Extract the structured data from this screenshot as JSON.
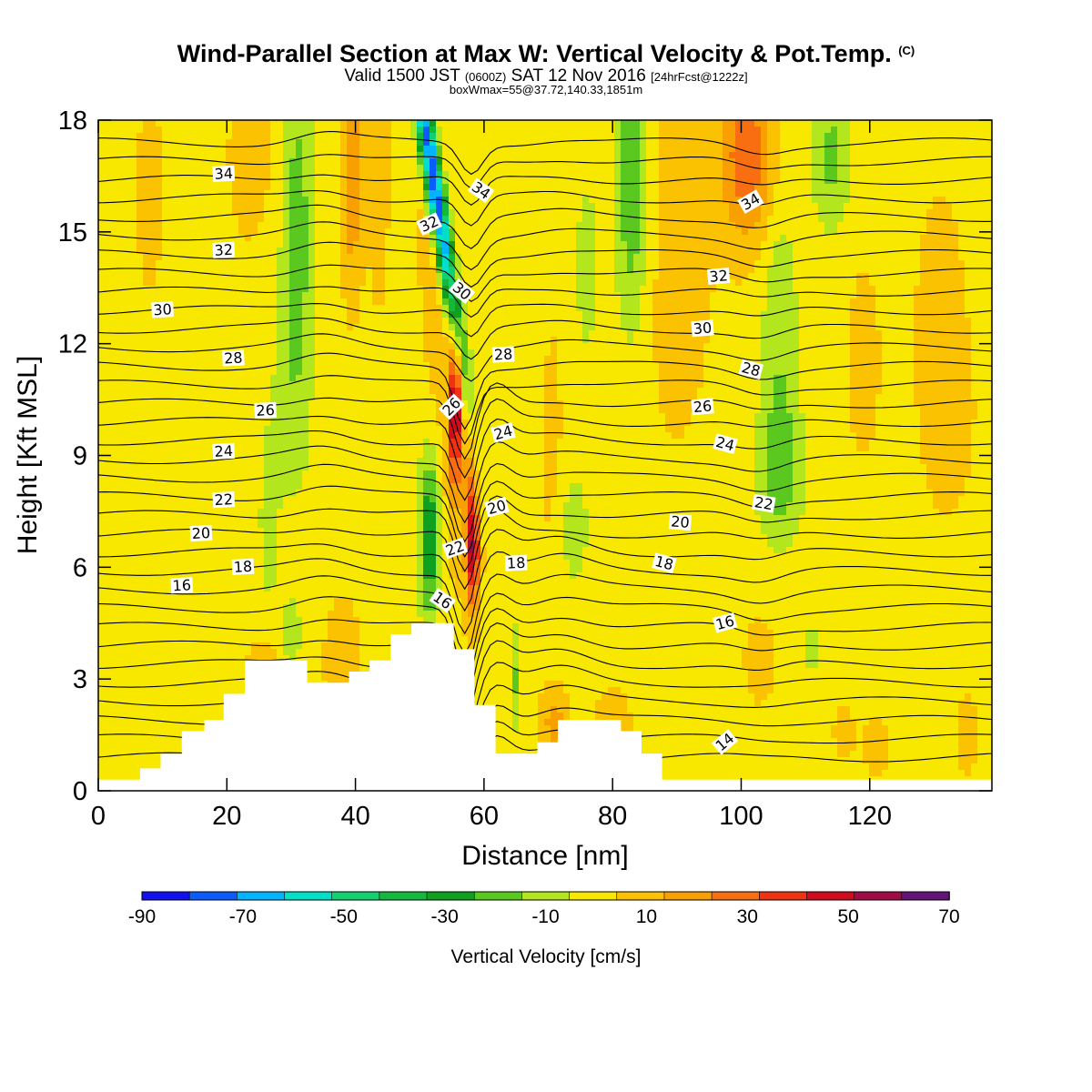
{
  "title": {
    "main": "Wind-Parallel Section at Max W: Vertical Velocity & Pot.Temp.",
    "copyright": "(C)",
    "valid_a": "Valid 1500 JST",
    "valid_utc": "(0600Z)",
    "valid_b": "SAT 12 Nov 2016",
    "fcst": "[24hrFcst@1222z]",
    "box": "boxWmax=55@37.72,140.33,1851m"
  },
  "chart_data": {
    "type": "heatmap",
    "xlabel": "Distance [nm]",
    "ylabel": "Height [Kft MSL]",
    "xlim": [
      0,
      139
    ],
    "ylim": [
      0,
      18
    ],
    "x_ticks": [
      0,
      20,
      40,
      60,
      80,
      100,
      120
    ],
    "y_ticks": [
      0,
      3,
      6,
      9,
      12,
      15,
      18
    ],
    "colorbar": {
      "label": "Vertical Velocity [cm/s]",
      "tick_labels": [
        "-90",
        "-70",
        "-50",
        "-30",
        "-10",
        "10",
        "30",
        "50",
        "70"
      ],
      "levels": [
        -90,
        -80,
        -70,
        -60,
        -50,
        -40,
        -30,
        -20,
        -10,
        0,
        10,
        20,
        30,
        40,
        50,
        60,
        70
      ],
      "colors": [
        "#1010f0",
        "#0a5cff",
        "#00b4ff",
        "#00e0c8",
        "#10d070",
        "#14b83c",
        "#10a020",
        "#5ac81e",
        "#b4e61e",
        "#f8e800",
        "#fac200",
        "#f8a000",
        "#f86e10",
        "#f03210",
        "#d20a1e",
        "#a00a46",
        "#641478"
      ]
    },
    "terrain_kft": [
      [
        0,
        0.3
      ],
      [
        6.5,
        0.3
      ],
      [
        6.5,
        0.6
      ],
      [
        9.7,
        0.6
      ],
      [
        9.7,
        1
      ],
      [
        13,
        1
      ],
      [
        13,
        1.6
      ],
      [
        16.5,
        1.6
      ],
      [
        16.5,
        1.9
      ],
      [
        19.5,
        1.9
      ],
      [
        19.5,
        2.6
      ],
      [
        22.8,
        2.6
      ],
      [
        22.8,
        3.5
      ],
      [
        32.5,
        3.5
      ],
      [
        32.5,
        2.9
      ],
      [
        39,
        2.9
      ],
      [
        39,
        3.2
      ],
      [
        42.2,
        3.2
      ],
      [
        42.2,
        3.5
      ],
      [
        45.5,
        3.5
      ],
      [
        45.5,
        4.2
      ],
      [
        48.7,
        4.2
      ],
      [
        48.7,
        4.5
      ],
      [
        55.3,
        4.5
      ],
      [
        55.3,
        3.8
      ],
      [
        58.5,
        3.8
      ],
      [
        58.5,
        2.3
      ],
      [
        61.8,
        2.3
      ],
      [
        61.8,
        1
      ],
      [
        68.3,
        1
      ],
      [
        68.3,
        1.3
      ],
      [
        71.5,
        1.3
      ],
      [
        71.5,
        1.9
      ],
      [
        81.3,
        1.9
      ],
      [
        81.3,
        1.6
      ],
      [
        84.5,
        1.6
      ],
      [
        84.5,
        1
      ],
      [
        87.7,
        1
      ],
      [
        87.7,
        0.3
      ],
      [
        139,
        0.3
      ]
    ],
    "theta_labels": [
      {
        "text": "34",
        "x": 19.5,
        "y": 16.55,
        "r": -3
      },
      {
        "text": "32",
        "x": 19.5,
        "y": 14.5,
        "r": -3
      },
      {
        "text": "30",
        "x": 10,
        "y": 12.9,
        "r": -3
      },
      {
        "text": "28",
        "x": 21,
        "y": 11.6,
        "r": -3
      },
      {
        "text": "26",
        "x": 26,
        "y": 10.2,
        "r": -3
      },
      {
        "text": "24",
        "x": 19.5,
        "y": 9.1,
        "r": -3
      },
      {
        "text": "22",
        "x": 19.5,
        "y": 7.8,
        "r": -3
      },
      {
        "text": "20",
        "x": 16,
        "y": 6.9,
        "r": -3
      },
      {
        "text": "18",
        "x": 22.5,
        "y": 6,
        "r": -3
      },
      {
        "text": "16",
        "x": 13,
        "y": 5.5,
        "r": -3
      },
      {
        "text": "34",
        "x": 59.5,
        "y": 16.1,
        "r": 35
      },
      {
        "text": "32",
        "x": 51.5,
        "y": 15.2,
        "r": -25
      },
      {
        "text": "30",
        "x": 56.5,
        "y": 13.4,
        "r": 40
      },
      {
        "text": "28",
        "x": 63,
        "y": 11.7,
        "r": -3
      },
      {
        "text": "26",
        "x": 55,
        "y": 10.3,
        "r": -45
      },
      {
        "text": "24",
        "x": 63,
        "y": 9.6,
        "r": -15
      },
      {
        "text": "22",
        "x": 55.5,
        "y": 6.5,
        "r": -20
      },
      {
        "text": "20",
        "x": 62,
        "y": 7.6,
        "r": -15
      },
      {
        "text": "18",
        "x": 65,
        "y": 6.1,
        "r": -3
      },
      {
        "text": "16",
        "x": 53.5,
        "y": 5.1,
        "r": 35
      },
      {
        "text": "34",
        "x": 101.5,
        "y": 15.8,
        "r": -30
      },
      {
        "text": "32",
        "x": 96.5,
        "y": 13.8,
        "r": -5
      },
      {
        "text": "30",
        "x": 94,
        "y": 12.4,
        "r": -5
      },
      {
        "text": "28",
        "x": 101.5,
        "y": 11.3,
        "r": 15
      },
      {
        "text": "26",
        "x": 94,
        "y": 10.3,
        "r": -5
      },
      {
        "text": "24",
        "x": 97.5,
        "y": 9.3,
        "r": 15
      },
      {
        "text": "22",
        "x": 103.5,
        "y": 7.7,
        "r": 10
      },
      {
        "text": "20",
        "x": 90.5,
        "y": 7.2,
        "r": 5
      },
      {
        "text": "18",
        "x": 88,
        "y": 6.1,
        "r": 15
      },
      {
        "text": "16",
        "x": 97.5,
        "y": 4.5,
        "r": -15
      },
      {
        "text": "14",
        "x": 97.5,
        "y": 1.3,
        "r": -40
      }
    ]
  }
}
